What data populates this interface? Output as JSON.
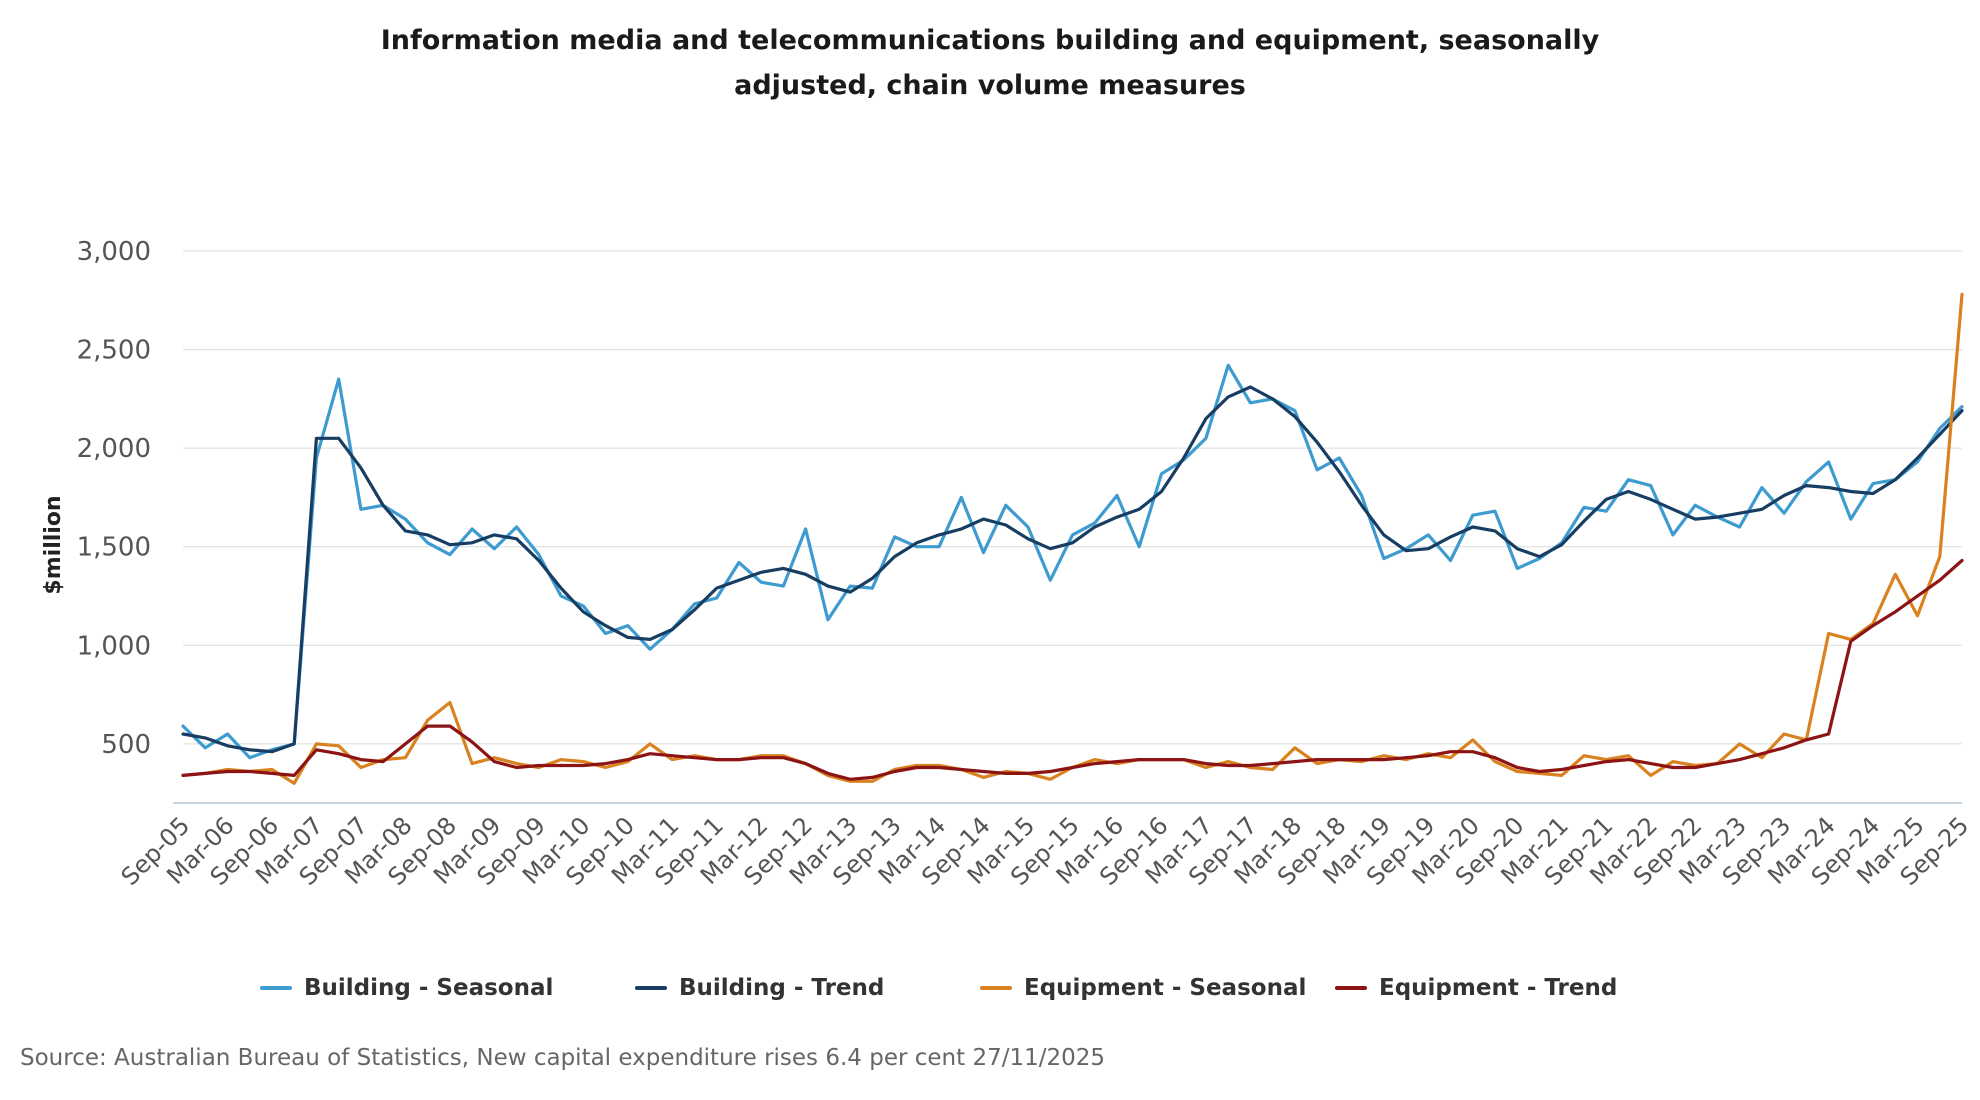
{
  "chart_data": {
    "type": "line",
    "title": "Information media and telecommunications building and equipment, seasonally adjusted, chain volume measures",
    "xlabel": "",
    "ylabel": "$million",
    "ylim": [
      200,
      3000
    ],
    "yticks": [
      500,
      1000,
      1500,
      2000,
      2500,
      3000
    ],
    "ytick_labels": [
      "500",
      "1,000",
      "1,500",
      "2,000",
      "2,500",
      "3,000"
    ],
    "grid": "horizontal",
    "legend_position": "bottom",
    "x": [
      "Sep-05",
      "Dec-05",
      "Mar-06",
      "Jun-06",
      "Sep-06",
      "Dec-06",
      "Mar-07",
      "Jun-07",
      "Sep-07",
      "Dec-07",
      "Mar-08",
      "Jun-08",
      "Sep-08",
      "Dec-08",
      "Mar-09",
      "Jun-09",
      "Sep-09",
      "Dec-09",
      "Mar-10",
      "Jun-10",
      "Sep-10",
      "Dec-10",
      "Mar-11",
      "Jun-11",
      "Sep-11",
      "Dec-11",
      "Mar-12",
      "Jun-12",
      "Sep-12",
      "Dec-12",
      "Mar-13",
      "Jun-13",
      "Sep-13",
      "Dec-13",
      "Mar-14",
      "Jun-14",
      "Sep-14",
      "Dec-14",
      "Mar-15",
      "Jun-15",
      "Sep-15",
      "Dec-15",
      "Mar-16",
      "Jun-16",
      "Sep-16",
      "Dec-16",
      "Mar-17",
      "Jun-17",
      "Sep-17",
      "Dec-17",
      "Mar-18",
      "Jun-18",
      "Sep-18",
      "Dec-18",
      "Mar-19",
      "Jun-19",
      "Sep-19",
      "Dec-19",
      "Mar-20",
      "Jun-20",
      "Sep-20",
      "Dec-20",
      "Mar-21",
      "Jun-21",
      "Sep-21",
      "Dec-21",
      "Mar-22",
      "Jun-22",
      "Sep-22",
      "Dec-22",
      "Mar-23",
      "Jun-23",
      "Sep-23",
      "Dec-23",
      "Mar-24",
      "Jun-24",
      "Sep-24",
      "Dec-24",
      "Mar-25",
      "Jun-25",
      "Sep-25"
    ],
    "x_tick_labels": [
      "Sep-05",
      "Mar-06",
      "Sep-06",
      "Mar-07",
      "Sep-07",
      "Mar-08",
      "Sep-08",
      "Mar-09",
      "Sep-09",
      "Mar-10",
      "Sep-10",
      "Mar-11",
      "Sep-11",
      "Mar-12",
      "Sep-12",
      "Mar-13",
      "Sep-13",
      "Mar-14",
      "Sep-14",
      "Mar-15",
      "Sep-15",
      "Mar-16",
      "Sep-16",
      "Mar-17",
      "Sep-17",
      "Mar-18",
      "Sep-18",
      "Mar-19",
      "Sep-19",
      "Mar-20",
      "Sep-20",
      "Mar-21",
      "Sep-21",
      "Mar-22",
      "Sep-22",
      "Mar-23",
      "Sep-23",
      "Mar-24",
      "Sep-24",
      "Mar-25",
      "Sep-25"
    ],
    "series": [
      {
        "name": "Building - Seasonal",
        "color": "#3d9bd0",
        "values": [
          590,
          480,
          550,
          430,
          470,
          500,
          1950,
          2350,
          1690,
          1710,
          1640,
          1520,
          1460,
          1590,
          1490,
          1600,
          1460,
          1250,
          1200,
          1060,
          1100,
          980,
          1080,
          1210,
          1240,
          1420,
          1320,
          1300,
          1590,
          1130,
          1300,
          1290,
          1550,
          1500,
          1500,
          1750,
          1470,
          1710,
          1600,
          1330,
          1560,
          1620,
          1760,
          1500,
          1870,
          1940,
          2050,
          2420,
          2230,
          2250,
          2190,
          1890,
          1950,
          1760,
          1440,
          1490,
          1560,
          1430,
          1660,
          1680,
          1390,
          1440,
          1520,
          1700,
          1680,
          1840,
          1810,
          1560,
          1710,
          1650,
          1600,
          1800,
          1670,
          1830,
          1930,
          1640,
          1820,
          1840,
          1930,
          2100,
          2210
        ]
      },
      {
        "name": "Building - Trend",
        "color": "#173e62",
        "values": [
          550,
          530,
          490,
          470,
          460,
          500,
          2050,
          2050,
          1900,
          1710,
          1580,
          1560,
          1510,
          1520,
          1560,
          1540,
          1430,
          1290,
          1170,
          1100,
          1040,
          1030,
          1080,
          1180,
          1290,
          1330,
          1370,
          1390,
          1360,
          1300,
          1270,
          1340,
          1450,
          1520,
          1560,
          1590,
          1640,
          1610,
          1540,
          1490,
          1520,
          1600,
          1650,
          1690,
          1780,
          1950,
          2150,
          2260,
          2310,
          2250,
          2160,
          2030,
          1880,
          1710,
          1560,
          1480,
          1490,
          1550,
          1600,
          1580,
          1490,
          1450,
          1510,
          1630,
          1740,
          1780,
          1740,
          1690,
          1640,
          1650,
          1670,
          1690,
          1760,
          1810,
          1800,
          1780,
          1770,
          1840,
          1950,
          2070,
          2190
        ]
      },
      {
        "name": "Equipment - Seasonal",
        "color": "#d9821f",
        "values": [
          340,
          350,
          370,
          360,
          370,
          300,
          500,
          490,
          380,
          420,
          430,
          620,
          710,
          400,
          430,
          400,
          380,
          420,
          410,
          380,
          410,
          500,
          420,
          440,
          420,
          420,
          440,
          440,
          400,
          340,
          310,
          310,
          370,
          390,
          390,
          370,
          330,
          360,
          350,
          320,
          380,
          420,
          400,
          420,
          420,
          420,
          380,
          410,
          380,
          370,
          480,
          400,
          420,
          410,
          440,
          420,
          450,
          430,
          520,
          410,
          360,
          350,
          340,
          440,
          420,
          440,
          340,
          410,
          390,
          400,
          500,
          430,
          550,
          520,
          1060,
          1030,
          1110,
          1360,
          1150,
          1450,
          2780
        ]
      },
      {
        "name": "Equipment - Trend",
        "color": "#8c1414",
        "values": [
          340,
          350,
          360,
          360,
          350,
          340,
          470,
          450,
          420,
          410,
          500,
          590,
          590,
          510,
          410,
          380,
          390,
          390,
          390,
          400,
          420,
          450,
          440,
          430,
          420,
          420,
          430,
          430,
          400,
          350,
          320,
          330,
          360,
          380,
          380,
          370,
          360,
          350,
          350,
          360,
          380,
          400,
          410,
          420,
          420,
          420,
          400,
          390,
          390,
          400,
          410,
          420,
          420,
          420,
          420,
          430,
          440,
          460,
          460,
          430,
          380,
          360,
          370,
          390,
          410,
          420,
          400,
          380,
          380,
          400,
          420,
          450,
          480,
          520,
          550,
          1020,
          1100,
          1170,
          1250,
          1330,
          1430
        ]
      }
    ]
  },
  "source_text": "Source: Australian Bureau of Statistics, New capital expenditure rises 6.4 per cent 27/11/2025"
}
